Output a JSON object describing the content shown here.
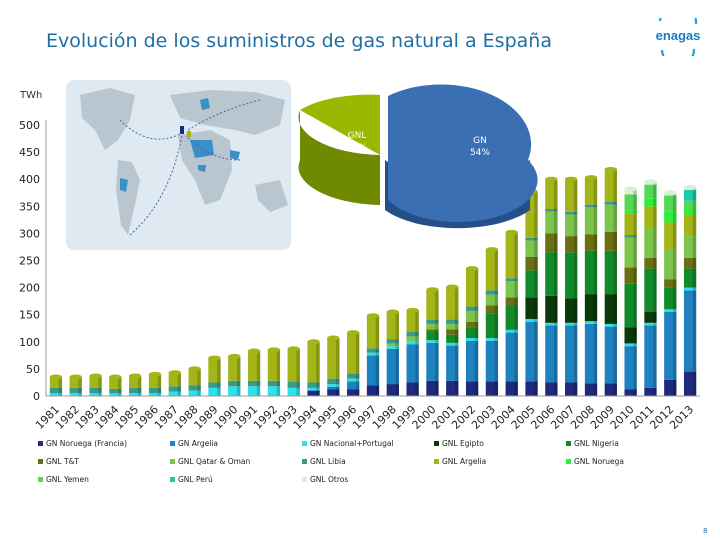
{
  "title": "Evolución de los suministros de gas natural a España",
  "logo_text": "enagas",
  "page_number": "8",
  "pie": {
    "slices": [
      {
        "label": "GN",
        "value": "54%",
        "percent": 54,
        "color": "#3a6fb4"
      },
      {
        "label": "GNL",
        "value": "46%",
        "percent": 46,
        "color": "#9ab800"
      }
    ]
  },
  "chart_data": {
    "type": "bar",
    "stacked": true,
    "ylabel": "TWh",
    "ylim": [
      0,
      500
    ],
    "yticks": [
      0,
      50,
      100,
      150,
      200,
      250,
      300,
      350,
      400,
      450,
      500
    ],
    "grid": false,
    "legend_position": "bottom",
    "categories": [
      "1981",
      "1982",
      "1983",
      "1984",
      "1985",
      "1986",
      "1987",
      "1988",
      "1989",
      "1990",
      "1991",
      "1992",
      "1993",
      "1994",
      "1995",
      "1996",
      "1997",
      "1998",
      "1999",
      "2000",
      "2001",
      "2002",
      "2003",
      "2004",
      "2005",
      "2006",
      "2007",
      "2008",
      "2009",
      "2010",
      "2011",
      "2012",
      "2013"
    ],
    "series": [
      {
        "name": "GN Noruega (Francia)",
        "color": "#1f2a7a",
        "values": [
          0,
          0,
          0,
          0,
          0,
          0,
          0,
          0,
          0,
          0,
          0,
          0,
          0,
          10,
          12,
          12,
          20,
          22,
          25,
          28,
          28,
          27,
          27,
          27,
          27,
          25,
          25,
          23,
          23,
          12,
          15,
          30,
          45
        ]
      },
      {
        "name": "GN Argelia",
        "color": "#1f82c0",
        "values": [
          0,
          0,
          0,
          0,
          0,
          0,
          0,
          0,
          0,
          0,
          0,
          0,
          0,
          0,
          5,
          15,
          55,
          65,
          70,
          70,
          65,
          75,
          75,
          90,
          110,
          105,
          105,
          110,
          105,
          80,
          115,
          125,
          150
        ]
      },
      {
        "name": "GN Nacional+Portugal",
        "color": "#2de0ea",
        "values": [
          5,
          5,
          5,
          5,
          5,
          5,
          8,
          10,
          15,
          18,
          18,
          18,
          15,
          5,
          5,
          5,
          5,
          5,
          5,
          5,
          5,
          5,
          5,
          5,
          5,
          5,
          5,
          5,
          5,
          5,
          5,
          5,
          5
        ]
      },
      {
        "name": "GNL Egipto",
        "color": "#0a3a0a",
        "values": [
          0,
          0,
          0,
          0,
          0,
          0,
          0,
          0,
          0,
          0,
          0,
          0,
          0,
          0,
          0,
          0,
          0,
          0,
          0,
          0,
          0,
          0,
          0,
          0,
          40,
          50,
          45,
          50,
          55,
          30,
          20,
          0,
          0
        ]
      },
      {
        "name": "GNL Nigeria",
        "color": "#138a2a",
        "values": [
          0,
          0,
          0,
          0,
          0,
          0,
          0,
          0,
          0,
          0,
          0,
          0,
          0,
          0,
          0,
          0,
          0,
          0,
          0,
          15,
          15,
          20,
          45,
          45,
          50,
          80,
          85,
          80,
          80,
          80,
          80,
          40,
          35
        ]
      },
      {
        "name": "GNL T&T",
        "color": "#6b6f14",
        "values": [
          0,
          0,
          0,
          0,
          0,
          0,
          0,
          0,
          0,
          0,
          0,
          0,
          0,
          0,
          0,
          0,
          0,
          0,
          0,
          5,
          10,
          10,
          15,
          15,
          25,
          35,
          30,
          30,
          35,
          30,
          20,
          15,
          20
        ]
      },
      {
        "name": "GNL Qatar & Oman",
        "color": "#7cc54a",
        "values": [
          0,
          0,
          0,
          0,
          0,
          0,
          0,
          0,
          0,
          0,
          0,
          0,
          0,
          0,
          0,
          0,
          0,
          5,
          10,
          10,
          10,
          20,
          20,
          30,
          30,
          40,
          40,
          50,
          50,
          55,
          55,
          55,
          40
        ]
      },
      {
        "name": "GNL Libia",
        "color": "#3a9a8a",
        "values": [
          10,
          10,
          10,
          8,
          10,
          10,
          10,
          10,
          10,
          10,
          10,
          10,
          12,
          10,
          10,
          10,
          8,
          8,
          8,
          8,
          8,
          8,
          8,
          5,
          5,
          5,
          5,
          5,
          5,
          5,
          0,
          0,
          0
        ]
      },
      {
        "name": "GNL Argelia",
        "color": "#a3b517",
        "values": [
          20,
          20,
          22,
          22,
          22,
          25,
          25,
          30,
          45,
          45,
          55,
          57,
          60,
          75,
          75,
          75,
          60,
          50,
          40,
          55,
          60,
          70,
          75,
          85,
          85,
          55,
          60,
          50,
          60,
          40,
          40,
          50,
          40
        ]
      },
      {
        "name": "GNL Noruega",
        "color": "#2bf03a",
        "values": [
          0,
          0,
          0,
          0,
          0,
          0,
          0,
          0,
          0,
          0,
          0,
          0,
          0,
          0,
          0,
          0,
          0,
          0,
          0,
          0,
          0,
          0,
          0,
          0,
          0,
          0,
          0,
          0,
          0,
          5,
          15,
          20,
          10
        ]
      },
      {
        "name": "GNL Yemen",
        "color": "#55d855",
        "values": [
          0,
          0,
          0,
          0,
          0,
          0,
          0,
          0,
          0,
          0,
          0,
          0,
          0,
          0,
          0,
          0,
          0,
          0,
          0,
          0,
          0,
          0,
          0,
          0,
          0,
          0,
          0,
          0,
          0,
          30,
          25,
          30,
          15
        ]
      },
      {
        "name": "GNL Perú",
        "color": "#1ec9a6",
        "values": [
          0,
          0,
          0,
          0,
          0,
          0,
          0,
          0,
          0,
          0,
          0,
          0,
          0,
          0,
          0,
          0,
          0,
          0,
          0,
          0,
          0,
          0,
          0,
          0,
          0,
          0,
          0,
          0,
          0,
          0,
          0,
          0,
          20
        ]
      },
      {
        "name": "GNL Otros",
        "color": "#d8f0d8",
        "values": [
          0,
          0,
          0,
          0,
          0,
          0,
          0,
          0,
          0,
          0,
          0,
          0,
          0,
          0,
          0,
          0,
          0,
          0,
          0,
          0,
          0,
          0,
          0,
          0,
          0,
          0,
          0,
          0,
          0,
          10,
          5,
          5,
          5
        ]
      }
    ]
  }
}
